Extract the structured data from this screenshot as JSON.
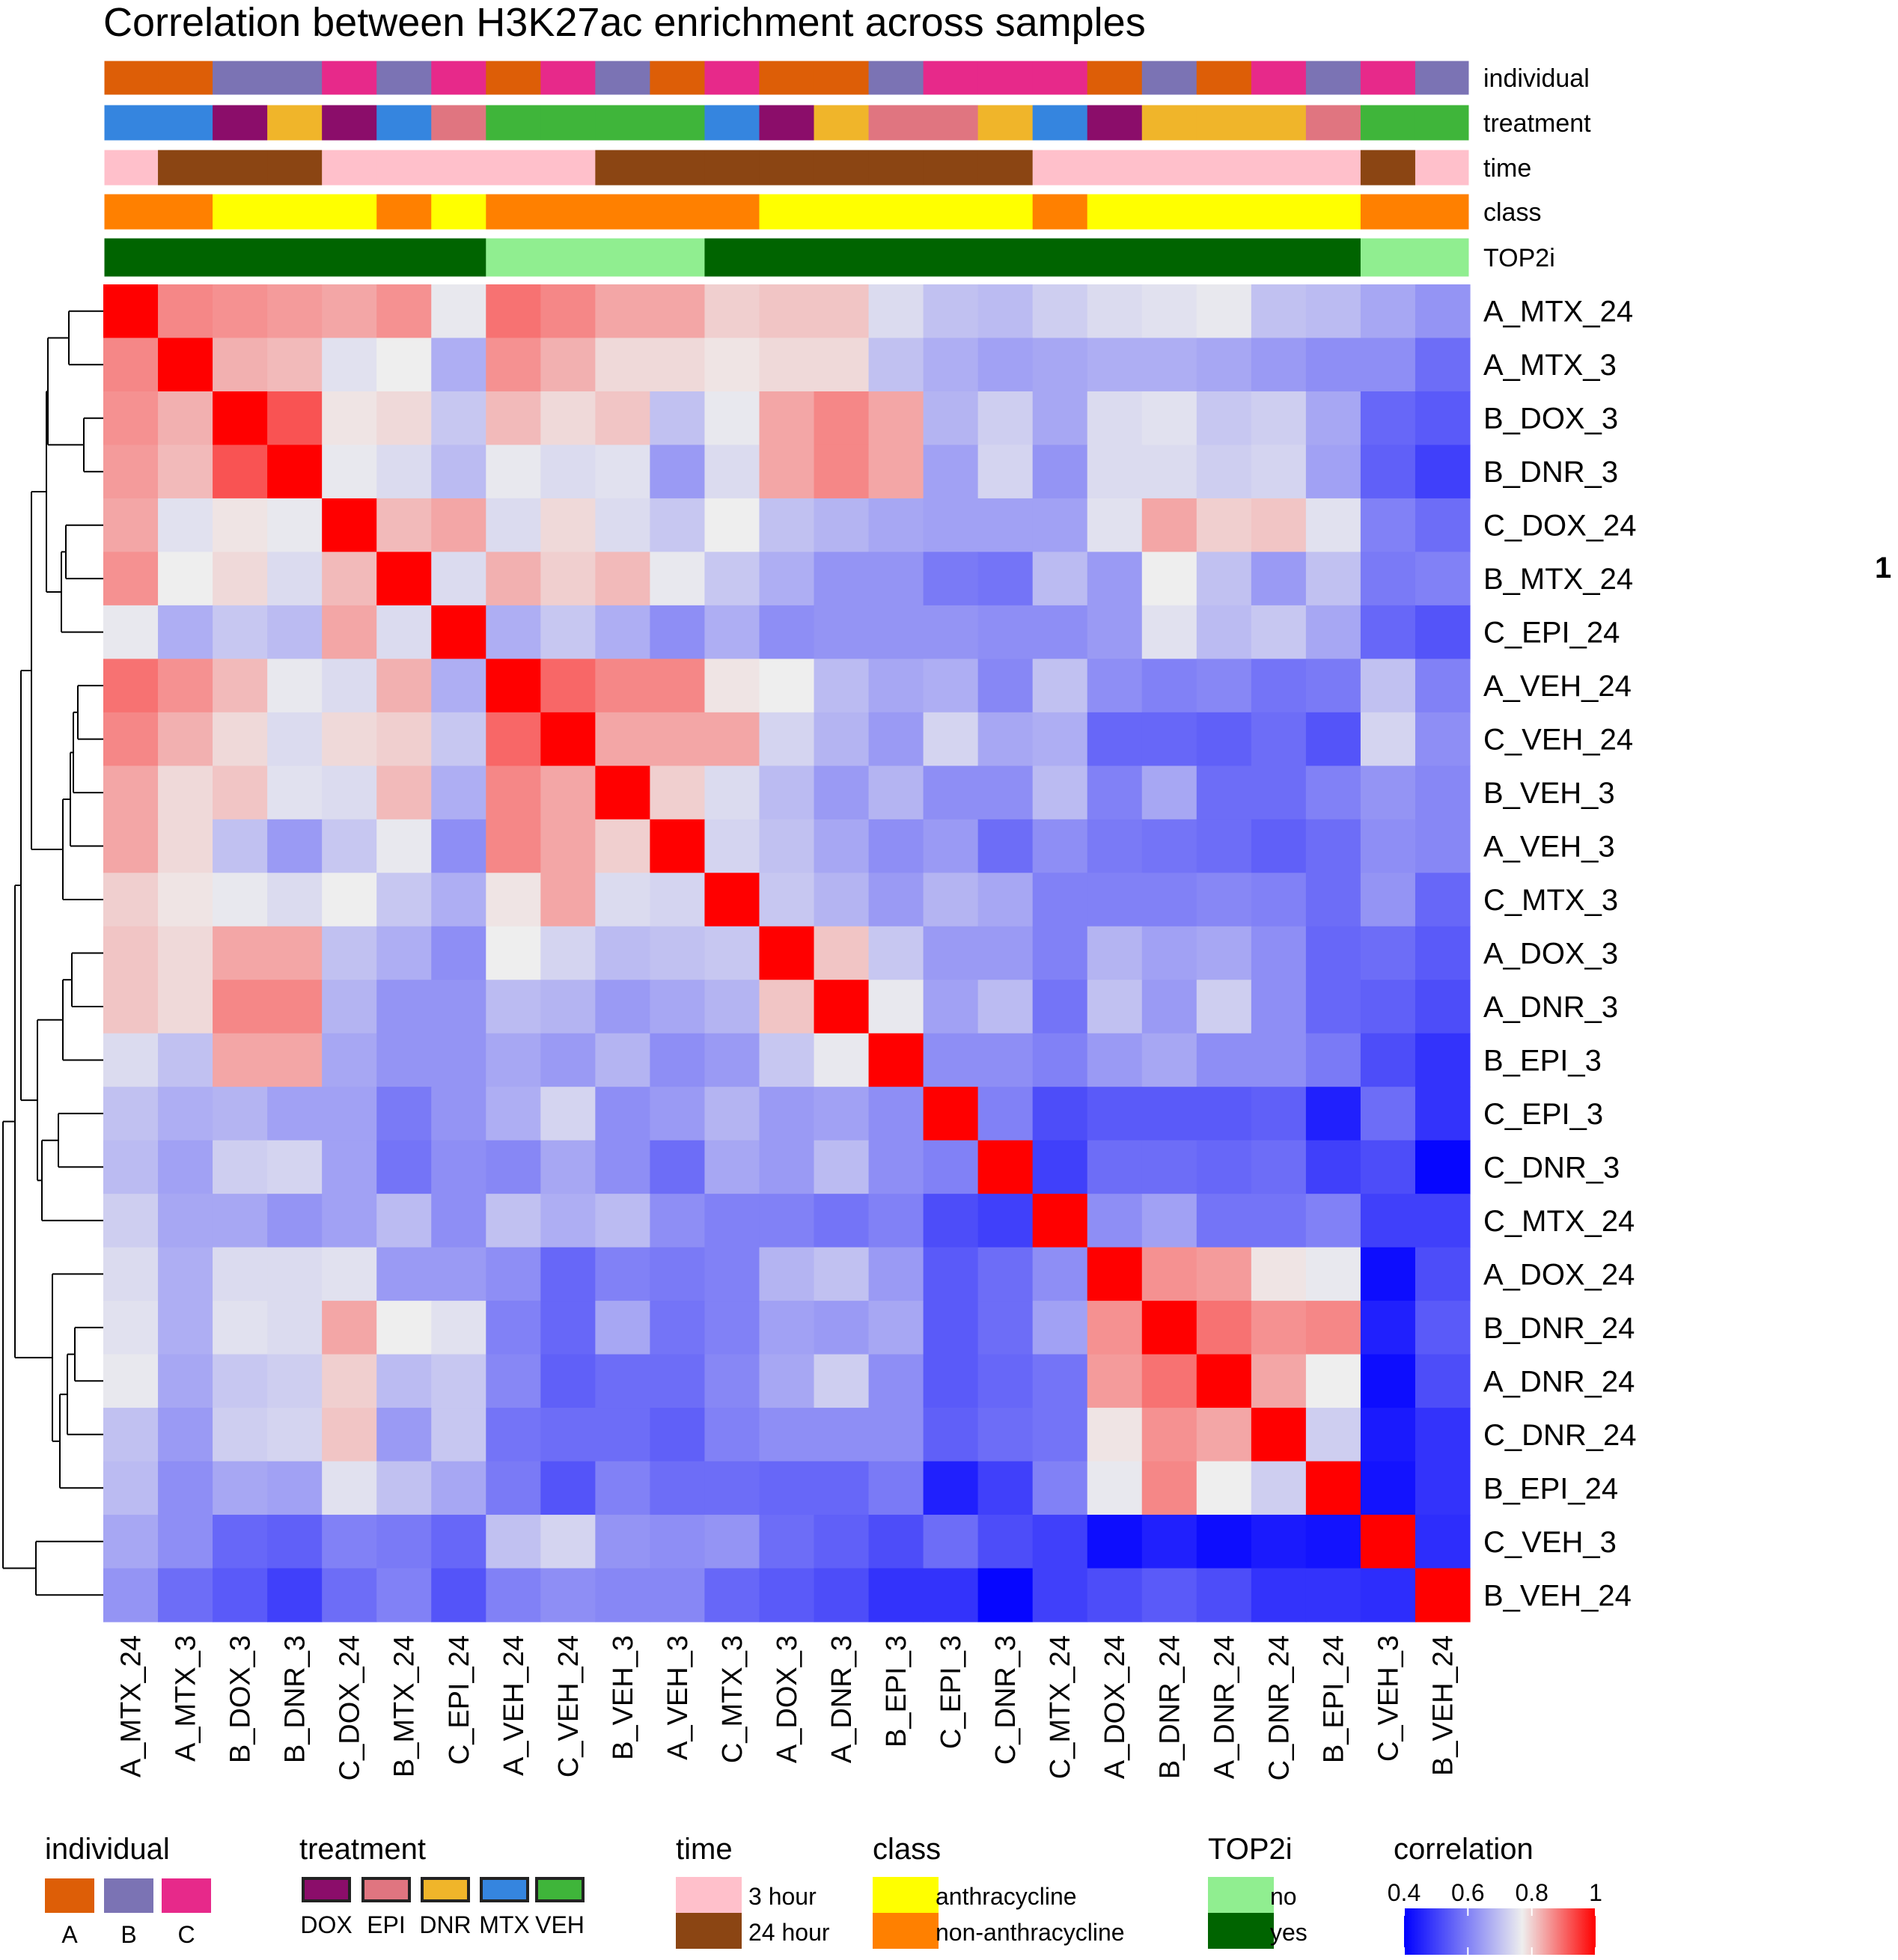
{
  "chart_data": {
    "type": "heatmap",
    "title": "Correlation between H3K27ac enrichment across samples",
    "samples": [
      "A_MTX_24",
      "A_MTX_3",
      "B_DOX_3",
      "B_DNR_3",
      "C_DOX_24",
      "B_MTX_24",
      "C_EPI_24",
      "A_VEH_24",
      "C_VEH_24",
      "B_VEH_3",
      "A_VEH_3",
      "C_MTX_3",
      "A_DOX_3",
      "A_DNR_3",
      "B_EPI_3",
      "C_EPI_3",
      "C_DNR_3",
      "C_MTX_24",
      "A_DOX_24",
      "B_DNR_24",
      "A_DNR_24",
      "C_DNR_24",
      "B_EPI_24",
      "C_VEH_3",
      "B_VEH_24"
    ],
    "rows": [
      "A_MTX_24",
      "A_MTX_3",
      "B_DOX_3",
      "B_DNR_3",
      "C_DOX_24",
      "B_MTX_24",
      "C_EPI_24",
      "A_VEH_24",
      "C_VEH_24",
      "B_VEH_3",
      "A_VEH_3",
      "C_MTX_3",
      "A_DOX_3",
      "A_DNR_3",
      "B_EPI_3",
      "C_EPI_3",
      "C_DNR_3",
      "C_MTX_24",
      "A_DOX_24",
      "B_DNR_24",
      "A_DNR_24",
      "C_DNR_24",
      "B_EPI_24",
      "C_VEH_3",
      "B_VEH_24"
    ],
    "columns": [
      "A_MTX_24",
      "A_MTX_3",
      "B_DOX_3",
      "B_DNR_3",
      "C_DOX_24",
      "B_MTX_24",
      "C_EPI_24",
      "A_VEH_24",
      "C_VEH_24",
      "B_VEH_3",
      "A_VEH_3",
      "C_MTX_3",
      "A_DOX_3",
      "A_DNR_3",
      "B_EPI_3",
      "C_EPI_3",
      "C_DNR_3",
      "C_MTX_24",
      "A_DOX_24",
      "B_DNR_24",
      "A_DNR_24",
      "C_DNR_24",
      "B_EPI_24",
      "C_VEH_3",
      "B_VEH_24"
    ],
    "values": [
      [
        1.0,
        0.87,
        0.86,
        0.85,
        0.84,
        0.86,
        0.76,
        0.89,
        0.87,
        0.84,
        0.84,
        0.8,
        0.81,
        0.81,
        0.74,
        0.7,
        0.69,
        0.72,
        0.74,
        0.75,
        0.76,
        0.7,
        0.69,
        0.66,
        0.63
      ],
      [
        0.87,
        1.0,
        0.83,
        0.82,
        0.75,
        0.77,
        0.67,
        0.86,
        0.83,
        0.79,
        0.79,
        0.78,
        0.79,
        0.79,
        0.7,
        0.67,
        0.65,
        0.66,
        0.67,
        0.67,
        0.66,
        0.64,
        0.62,
        0.62,
        0.57
      ],
      [
        0.86,
        0.83,
        1.0,
        0.92,
        0.78,
        0.79,
        0.71,
        0.82,
        0.79,
        0.81,
        0.7,
        0.76,
        0.84,
        0.87,
        0.84,
        0.68,
        0.72,
        0.66,
        0.74,
        0.75,
        0.71,
        0.72,
        0.66,
        0.56,
        0.54
      ],
      [
        0.85,
        0.82,
        0.92,
        1.0,
        0.76,
        0.74,
        0.69,
        0.76,
        0.74,
        0.75,
        0.64,
        0.74,
        0.84,
        0.87,
        0.84,
        0.65,
        0.73,
        0.63,
        0.74,
        0.74,
        0.72,
        0.73,
        0.65,
        0.55,
        0.5
      ],
      [
        0.84,
        0.75,
        0.78,
        0.76,
        1.0,
        0.82,
        0.84,
        0.74,
        0.79,
        0.74,
        0.71,
        0.77,
        0.7,
        0.68,
        0.66,
        0.65,
        0.65,
        0.65,
        0.75,
        0.84,
        0.8,
        0.81,
        0.75,
        0.6,
        0.57
      ],
      [
        0.86,
        0.77,
        0.79,
        0.74,
        0.82,
        1.0,
        0.74,
        0.83,
        0.8,
        0.82,
        0.76,
        0.71,
        0.67,
        0.63,
        0.63,
        0.59,
        0.58,
        0.69,
        0.64,
        0.77,
        0.7,
        0.64,
        0.7,
        0.59,
        0.6
      ],
      [
        0.76,
        0.67,
        0.71,
        0.69,
        0.84,
        0.74,
        1.0,
        0.67,
        0.71,
        0.67,
        0.62,
        0.67,
        0.62,
        0.63,
        0.63,
        0.63,
        0.62,
        0.62,
        0.64,
        0.75,
        0.69,
        0.71,
        0.66,
        0.56,
        0.53
      ],
      [
        0.89,
        0.86,
        0.82,
        0.76,
        0.74,
        0.83,
        0.67,
        1.0,
        0.9,
        0.87,
        0.87,
        0.78,
        0.77,
        0.69,
        0.66,
        0.67,
        0.61,
        0.7,
        0.62,
        0.6,
        0.61,
        0.58,
        0.59,
        0.7,
        0.6
      ],
      [
        0.87,
        0.83,
        0.79,
        0.74,
        0.79,
        0.8,
        0.71,
        0.9,
        1.0,
        0.84,
        0.84,
        0.84,
        0.73,
        0.68,
        0.64,
        0.73,
        0.66,
        0.67,
        0.56,
        0.56,
        0.55,
        0.57,
        0.53,
        0.73,
        0.62
      ],
      [
        0.84,
        0.79,
        0.81,
        0.75,
        0.74,
        0.82,
        0.67,
        0.87,
        0.84,
        1.0,
        0.8,
        0.74,
        0.69,
        0.64,
        0.68,
        0.62,
        0.62,
        0.69,
        0.6,
        0.66,
        0.57,
        0.57,
        0.6,
        0.63,
        0.61
      ],
      [
        0.84,
        0.79,
        0.7,
        0.64,
        0.71,
        0.76,
        0.62,
        0.87,
        0.84,
        0.8,
        1.0,
        0.73,
        0.7,
        0.66,
        0.62,
        0.64,
        0.57,
        0.62,
        0.59,
        0.58,
        0.57,
        0.55,
        0.57,
        0.62,
        0.61
      ],
      [
        0.8,
        0.78,
        0.76,
        0.74,
        0.77,
        0.71,
        0.67,
        0.78,
        0.84,
        0.74,
        0.73,
        1.0,
        0.71,
        0.68,
        0.64,
        0.68,
        0.66,
        0.6,
        0.6,
        0.6,
        0.61,
        0.6,
        0.57,
        0.63,
        0.56
      ],
      [
        0.81,
        0.79,
        0.84,
        0.84,
        0.7,
        0.67,
        0.62,
        0.77,
        0.73,
        0.69,
        0.7,
        0.71,
        1.0,
        0.81,
        0.71,
        0.64,
        0.64,
        0.6,
        0.68,
        0.65,
        0.66,
        0.62,
        0.56,
        0.57,
        0.54
      ],
      [
        0.81,
        0.79,
        0.87,
        0.87,
        0.68,
        0.63,
        0.63,
        0.69,
        0.68,
        0.64,
        0.66,
        0.68,
        0.81,
        1.0,
        0.76,
        0.65,
        0.69,
        0.58,
        0.7,
        0.64,
        0.72,
        0.62,
        0.56,
        0.55,
        0.52
      ],
      [
        0.74,
        0.7,
        0.84,
        0.84,
        0.66,
        0.63,
        0.63,
        0.66,
        0.64,
        0.68,
        0.62,
        0.64,
        0.71,
        0.76,
        1.0,
        0.62,
        0.62,
        0.6,
        0.64,
        0.66,
        0.62,
        0.62,
        0.59,
        0.52,
        0.48
      ],
      [
        0.7,
        0.67,
        0.68,
        0.65,
        0.65,
        0.59,
        0.63,
        0.67,
        0.73,
        0.62,
        0.64,
        0.68,
        0.64,
        0.65,
        0.62,
        1.0,
        0.6,
        0.52,
        0.54,
        0.54,
        0.54,
        0.55,
        0.45,
        0.57,
        0.48
      ],
      [
        0.69,
        0.65,
        0.72,
        0.73,
        0.65,
        0.58,
        0.62,
        0.61,
        0.66,
        0.62,
        0.57,
        0.66,
        0.64,
        0.69,
        0.62,
        0.6,
        1.0,
        0.5,
        0.57,
        0.57,
        0.56,
        0.57,
        0.5,
        0.52,
        0.41
      ],
      [
        0.72,
        0.66,
        0.66,
        0.63,
        0.65,
        0.69,
        0.62,
        0.7,
        0.67,
        0.69,
        0.62,
        0.6,
        0.6,
        0.58,
        0.6,
        0.52,
        0.5,
        1.0,
        0.62,
        0.65,
        0.58,
        0.58,
        0.6,
        0.5,
        0.5
      ],
      [
        0.74,
        0.67,
        0.74,
        0.74,
        0.75,
        0.64,
        0.64,
        0.62,
        0.56,
        0.6,
        0.59,
        0.6,
        0.68,
        0.7,
        0.64,
        0.54,
        0.57,
        0.62,
        1.0,
        0.86,
        0.85,
        0.78,
        0.76,
        0.42,
        0.52
      ],
      [
        0.75,
        0.67,
        0.75,
        0.74,
        0.84,
        0.77,
        0.75,
        0.6,
        0.56,
        0.66,
        0.58,
        0.6,
        0.65,
        0.64,
        0.66,
        0.54,
        0.57,
        0.65,
        0.86,
        1.0,
        0.89,
        0.86,
        0.87,
        0.45,
        0.54
      ],
      [
        0.76,
        0.66,
        0.71,
        0.72,
        0.8,
        0.69,
        0.71,
        0.61,
        0.55,
        0.57,
        0.57,
        0.61,
        0.66,
        0.72,
        0.62,
        0.54,
        0.56,
        0.58,
        0.85,
        0.89,
        1.0,
        0.84,
        0.77,
        0.42,
        0.52
      ],
      [
        0.7,
        0.64,
        0.72,
        0.73,
        0.81,
        0.64,
        0.71,
        0.58,
        0.57,
        0.57,
        0.55,
        0.6,
        0.62,
        0.62,
        0.62,
        0.55,
        0.57,
        0.58,
        0.78,
        0.86,
        0.84,
        1.0,
        0.72,
        0.44,
        0.48
      ],
      [
        0.69,
        0.62,
        0.66,
        0.65,
        0.75,
        0.7,
        0.66,
        0.59,
        0.53,
        0.6,
        0.57,
        0.57,
        0.56,
        0.56,
        0.59,
        0.45,
        0.5,
        0.6,
        0.76,
        0.87,
        0.77,
        0.72,
        1.0,
        0.43,
        0.48
      ],
      [
        0.66,
        0.62,
        0.56,
        0.55,
        0.6,
        0.59,
        0.56,
        0.7,
        0.73,
        0.63,
        0.62,
        0.63,
        0.57,
        0.55,
        0.52,
        0.57,
        0.52,
        0.5,
        0.42,
        0.45,
        0.42,
        0.44,
        0.43,
        1.0,
        0.47
      ],
      [
        0.63,
        0.57,
        0.54,
        0.5,
        0.57,
        0.6,
        0.53,
        0.6,
        0.62,
        0.61,
        0.61,
        0.56,
        0.54,
        0.52,
        0.48,
        0.48,
        0.41,
        0.5,
        0.52,
        0.54,
        0.52,
        0.48,
        0.48,
        0.47,
        1.0
      ]
    ],
    "annotation_rows": [
      "individual",
      "treatment",
      "time",
      "class",
      "TOP2i"
    ],
    "annotations": {
      "individual": [
        "A",
        "A",
        "B",
        "B",
        "C",
        "B",
        "C",
        "A",
        "C",
        "B",
        "A",
        "C",
        "A",
        "A",
        "B",
        "C",
        "C",
        "C",
        "A",
        "B",
        "A",
        "C",
        "B",
        "C",
        "B"
      ],
      "treatment": [
        "MTX",
        "MTX",
        "DOX",
        "DNR",
        "DOX",
        "MTX",
        "EPI",
        "VEH",
        "VEH",
        "VEH",
        "VEH",
        "MTX",
        "DOX",
        "DNR",
        "EPI",
        "EPI",
        "DNR",
        "MTX",
        "DOX",
        "DNR",
        "DNR",
        "DNR",
        "EPI",
        "VEH",
        "VEH"
      ],
      "time": [
        "3 hour",
        "24 hour",
        "24 hour",
        "24 hour",
        "3 hour",
        "3 hour",
        "3 hour",
        "3 hour",
        "3 hour",
        "24 hour",
        "24 hour",
        "24 hour",
        "24 hour",
        "24 hour",
        "24 hour",
        "24 hour",
        "24 hour",
        "3 hour",
        "3 hour",
        "3 hour",
        "3 hour",
        "3 hour",
        "3 hour",
        "24 hour",
        "3 hour"
      ],
      "class": [
        "non-anthracycline",
        "non-anthracycline",
        "anthracycline",
        "anthracycline",
        "anthracycline",
        "non-anthracycline",
        "anthracycline",
        "non-anthracycline",
        "non-anthracycline",
        "non-anthracycline",
        "non-anthracycline",
        "non-anthracycline",
        "anthracycline",
        "anthracycline",
        "anthracycline",
        "anthracycline",
        "anthracycline",
        "non-anthracycline",
        "anthracycline",
        "anthracycline",
        "anthracycline",
        "anthracycline",
        "anthracycline",
        "non-anthracycline",
        "non-anthracycline"
      ],
      "TOP2i": [
        "yes",
        "yes",
        "yes",
        "yes",
        "yes",
        "yes",
        "yes",
        "no",
        "no",
        "no",
        "no",
        "yes",
        "yes",
        "yes",
        "yes",
        "yes",
        "yes",
        "yes",
        "yes",
        "yes",
        "yes",
        "yes",
        "yes",
        "no",
        "no"
      ]
    },
    "legends": [
      {
        "title": "individual",
        "entries": [
          {
            "label": "A",
            "color": "#dd5e07"
          },
          {
            "label": "B",
            "color": "#7b73b4"
          },
          {
            "label": "C",
            "color": "#e7298a"
          }
        ]
      },
      {
        "title": "treatment",
        "entries": [
          {
            "label": "DOX",
            "color": "#8b0d6a"
          },
          {
            "label": "EPI",
            "color": "#e07580"
          },
          {
            "label": "DNR",
            "color": "#f0b52a"
          },
          {
            "label": "MTX",
            "color": "#3585df"
          },
          {
            "label": "VEH",
            "color": "#3fb53a"
          }
        ]
      },
      {
        "title": "time",
        "entries": [
          {
            "label": "3 hour",
            "color": "#ffc0cb"
          },
          {
            "label": "24 hour",
            "color": "#8b4513"
          }
        ]
      },
      {
        "title": "class",
        "entries": [
          {
            "label": "anthracycline",
            "color": "#ffff00"
          },
          {
            "label": "non-anthracycline",
            "color": "#ff8000"
          }
        ]
      },
      {
        "title": "TOP2i",
        "entries": [
          {
            "label": "no",
            "color": "#90ee90"
          },
          {
            "label": "yes",
            "color": "#006400"
          }
        ]
      }
    ],
    "color_scale": {
      "title": "correlation",
      "ticks": [
        0.4,
        0.6,
        0.8,
        1
      ],
      "tick_labels": [
        "0.4",
        "0.6",
        "0.8",
        "1"
      ],
      "stops": [
        {
          "value": 0.4,
          "color": "#0000ff"
        },
        {
          "value": 0.77,
          "color": "#eeeeee"
        },
        {
          "value": 1.0,
          "color": "#ff0000"
        }
      ]
    }
  },
  "stray_mark": "1"
}
